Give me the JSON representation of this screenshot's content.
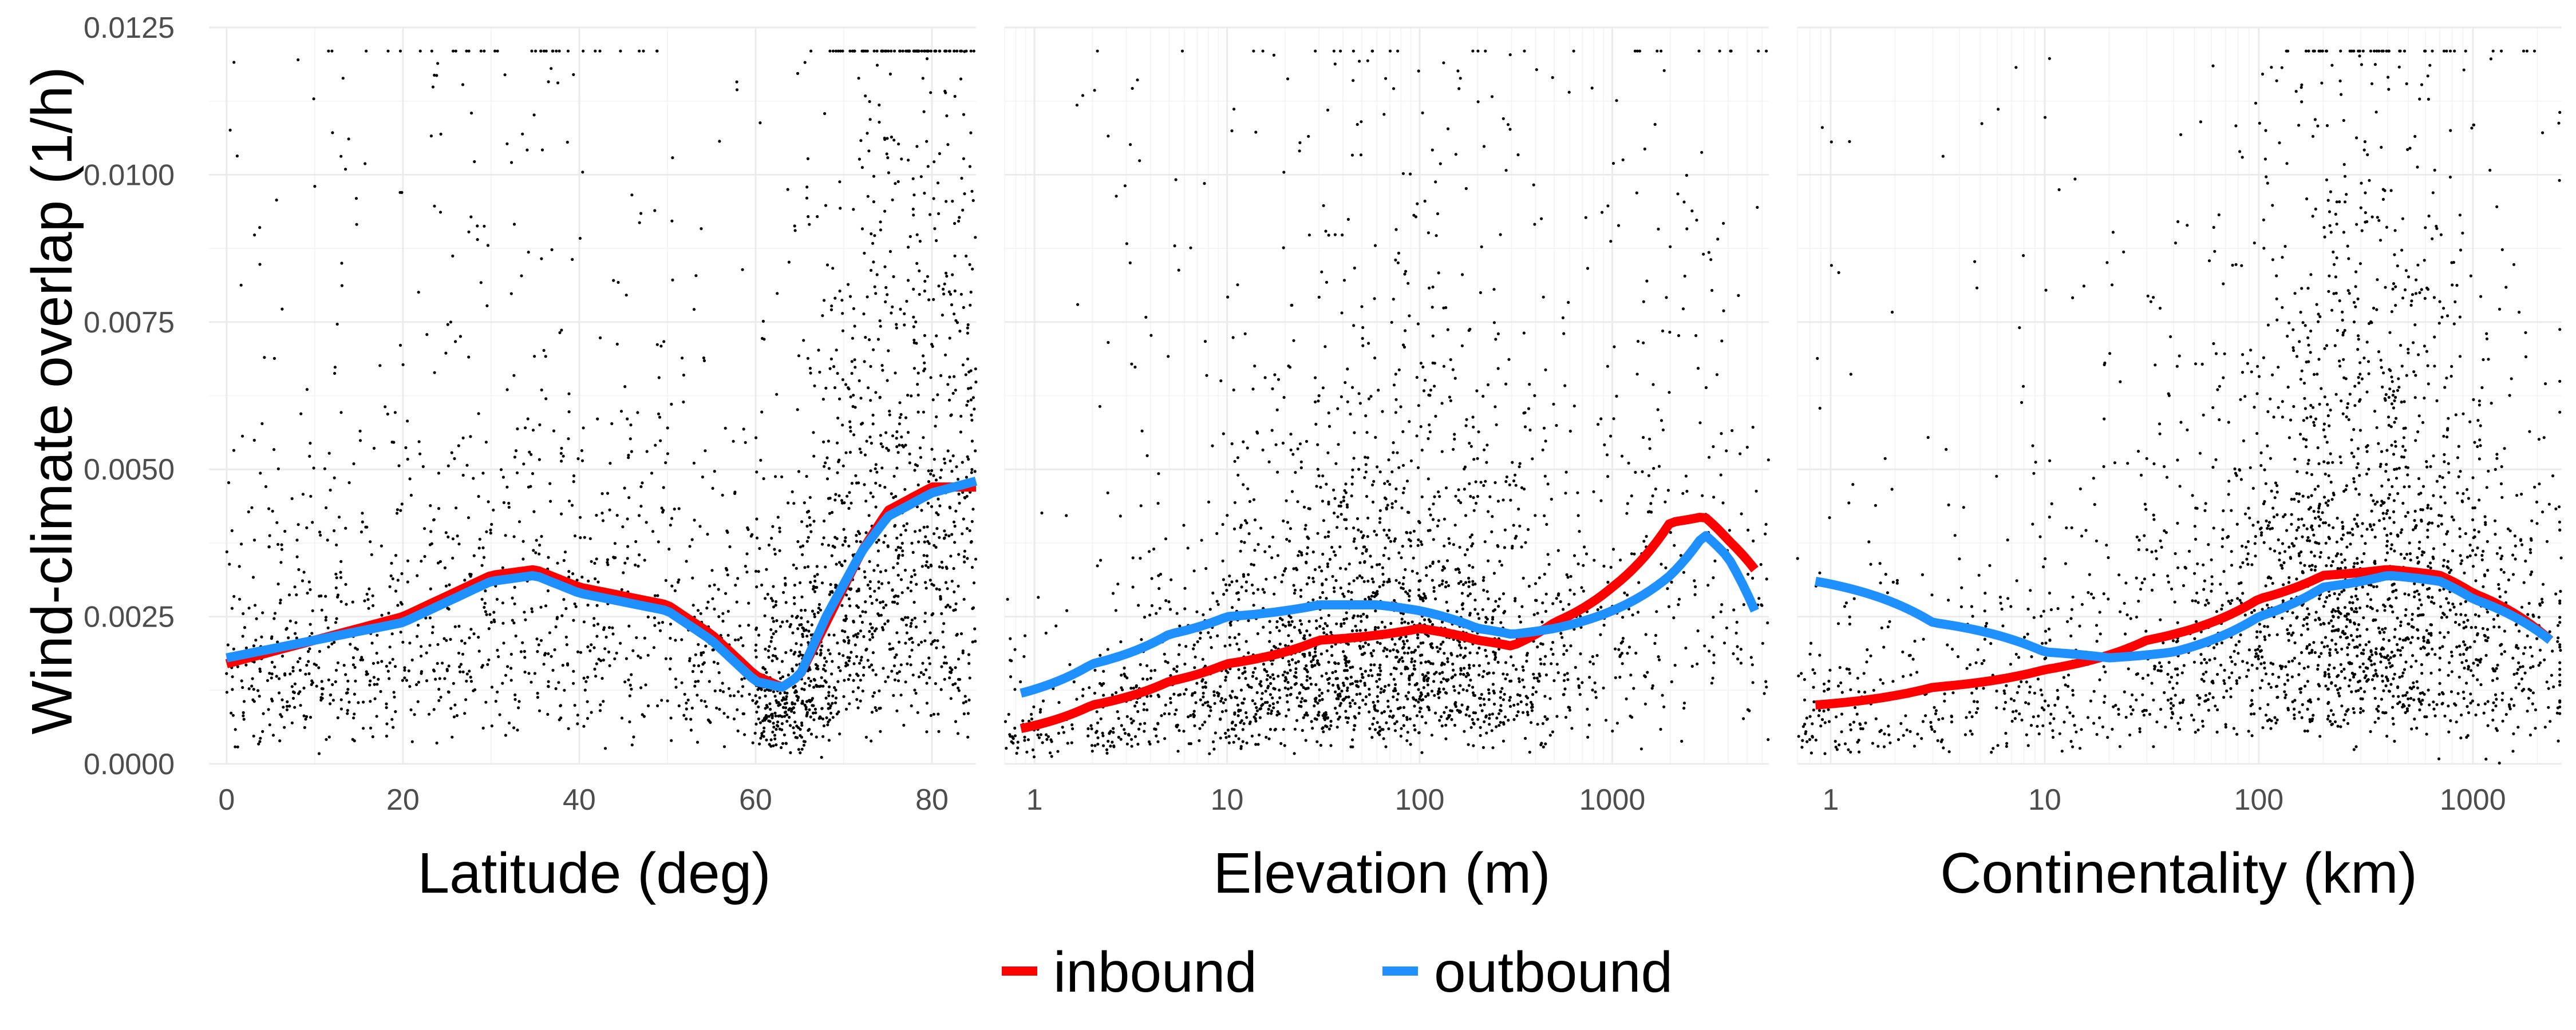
{
  "ylabel": "Wind-climate overlap (1/h)",
  "legend": {
    "position": "bottom",
    "entries": [
      {
        "label": "inbound",
        "color": "#ff0000"
      },
      {
        "label": "outbound",
        "color": "#1e90ff"
      }
    ]
  },
  "chart_data": [
    {
      "type": "scatter",
      "xlabel": "Latitude (deg)",
      "ylabel": "Wind-climate overlap (1/h)",
      "xscale": "linear",
      "xlim": [
        -2,
        85
      ],
      "ylim": [
        0,
        0.0125
      ],
      "xticks": [
        0,
        20,
        40,
        60,
        80
      ],
      "xtick_labels": [
        "0",
        "20",
        "40",
        "60",
        "80"
      ],
      "yticks": [
        0,
        0.0025,
        0.005,
        0.0075,
        0.01,
        0.0125
      ],
      "ytick_labels": [
        "0.0000",
        "0.0025",
        "0.0050",
        "0.0075",
        "0.0100",
        "0.0125"
      ],
      "grid": true,
      "series": [
        {
          "name": "inbound",
          "color": "#ff0000",
          "x": [
            0,
            10,
            20,
            30,
            35,
            40,
            50,
            55,
            60,
            63,
            65,
            68,
            72,
            75,
            80,
            85
          ],
          "y": [
            0.0017,
            0.0021,
            0.0025,
            0.0032,
            0.0033,
            0.003,
            0.0027,
            0.0022,
            0.0015,
            0.0013,
            0.0015,
            0.0024,
            0.0036,
            0.0043,
            0.0047,
            0.0047
          ]
        },
        {
          "name": "outbound",
          "color": "#1e90ff",
          "x": [
            0,
            10,
            20,
            30,
            35,
            40,
            50,
            55,
            60,
            63,
            65,
            68,
            72,
            75,
            80,
            85
          ],
          "y": [
            0.0018,
            0.0021,
            0.0024,
            0.0031,
            0.0032,
            0.0029,
            0.0026,
            0.0021,
            0.0014,
            0.0013,
            0.0015,
            0.0025,
            0.0036,
            0.0042,
            0.0046,
            0.0048
          ]
        }
      ],
      "points": {
        "count": 2600,
        "note": "dense black scatter of individual observations"
      }
    },
    {
      "type": "scatter",
      "xlabel": "Elevation (m)",
      "ylabel": "Wind-climate overlap (1/h)",
      "xscale": "log10",
      "xlim": [
        0.7,
        6500
      ],
      "ylim": [
        0,
        0.0125
      ],
      "xticks": [
        1,
        10,
        100,
        1000
      ],
      "xtick_labels": [
        "1",
        "10",
        "100",
        "1000"
      ],
      "yticks": [
        0,
        0.0025,
        0.005,
        0.0075,
        0.01,
        0.0125
      ],
      "grid": true,
      "series": [
        {
          "name": "inbound",
          "color": "#ff0000",
          "x": [
            0.85,
            2,
            5,
            10,
            30,
            100,
            200,
            300,
            500,
            1000,
            2000,
            3000,
            4000,
            5500
          ],
          "y": [
            0.0006,
            0.001,
            0.0014,
            0.0017,
            0.0021,
            0.0023,
            0.0021,
            0.002,
            0.0024,
            0.003,
            0.0041,
            0.0042,
            0.0038,
            0.0033
          ]
        },
        {
          "name": "outbound",
          "color": "#1e90ff",
          "x": [
            0.85,
            2,
            5,
            10,
            30,
            60,
            100,
            200,
            300,
            500,
            1000,
            2000,
            3000,
            4000,
            5500
          ],
          "y": [
            0.0012,
            0.0017,
            0.0022,
            0.0025,
            0.0027,
            0.0027,
            0.0026,
            0.0023,
            0.0022,
            0.0023,
            0.0026,
            0.0032,
            0.0039,
            0.0035,
            0.0026
          ]
        }
      ],
      "points": {
        "count": 2600,
        "note": "dense black scatter of individual observations"
      }
    },
    {
      "type": "scatter",
      "xlabel": "Continentality (km)",
      "ylabel": "Wind-climate overlap (1/h)",
      "xscale": "log10",
      "xlim": [
        0.7,
        2600
      ],
      "ylim": [
        0,
        0.0125
      ],
      "xticks": [
        1,
        10,
        100,
        1000
      ],
      "xtick_labels": [
        "1",
        "10",
        "100",
        "1000"
      ],
      "yticks": [
        0,
        0.0025,
        0.005,
        0.0075,
        0.01,
        0.0125
      ],
      "grid": true,
      "series": [
        {
          "name": "inbound",
          "color": "#ff0000",
          "x": [
            0.85,
            3,
            10,
            30,
            100,
            200,
            400,
            700,
            1000,
            2300
          ],
          "y": [
            0.001,
            0.0013,
            0.0016,
            0.0021,
            0.0028,
            0.0032,
            0.0033,
            0.0032,
            0.0029,
            0.0021
          ]
        },
        {
          "name": "outbound",
          "color": "#1e90ff",
          "x": [
            0.85,
            3,
            10,
            20,
            40,
            100,
            200,
            400,
            700,
            1000,
            2300
          ],
          "y": [
            0.0031,
            0.0024,
            0.0019,
            0.0018,
            0.0019,
            0.0025,
            0.003,
            0.0032,
            0.0031,
            0.0028,
            0.0021
          ]
        }
      ],
      "points": {
        "count": 2600,
        "note": "dense black scatter of individual observations"
      }
    }
  ]
}
